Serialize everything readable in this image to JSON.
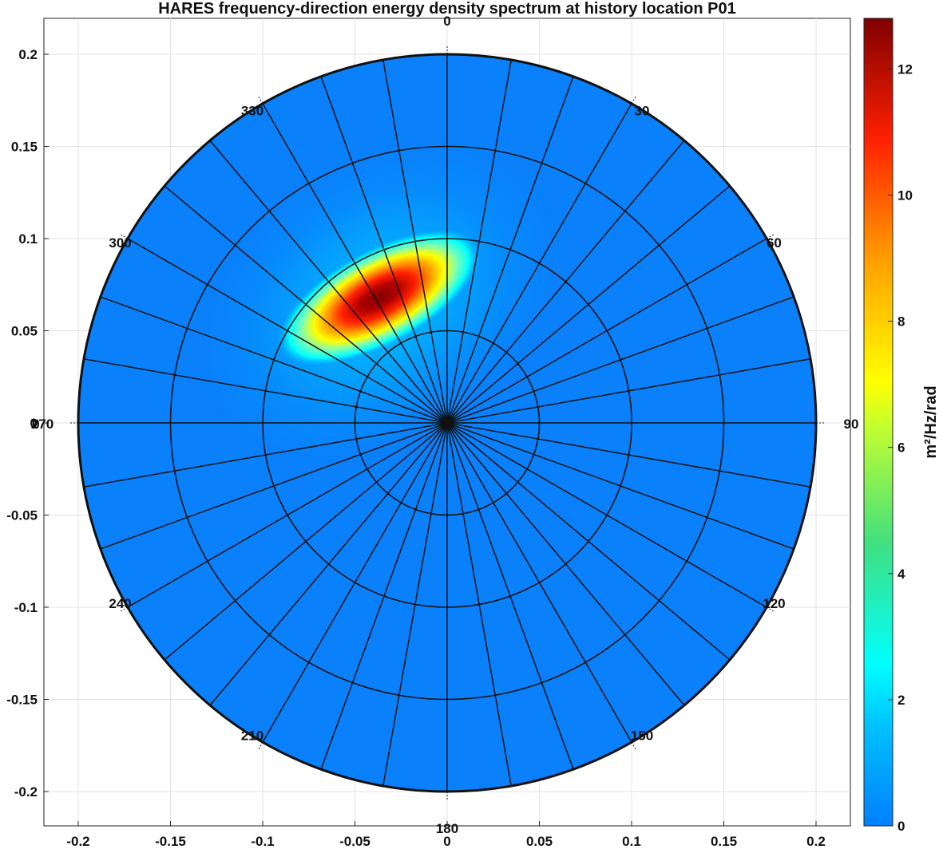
{
  "chart_data": {
    "type": "heatmap",
    "subtype": "polar-contour",
    "title": "HARES frequency-direction energy density spectrum at history location P01",
    "x_ticks": [
      "-0.2",
      "-0.15",
      "-0.1",
      "-0.05",
      "0",
      "0.05",
      "0.1",
      "0.15",
      "0.2"
    ],
    "y_ticks": [
      "0.2",
      "0.15",
      "0.1",
      "0.05",
      "0",
      "-0.05",
      "-0.1",
      "-0.15",
      "-0.2"
    ],
    "xlim": [
      -0.22,
      0.22
    ],
    "ylim": [
      -0.22,
      0.22
    ],
    "grid": true,
    "polar": {
      "r_max": 0.2,
      "rings": [
        0.05,
        0.1,
        0.15,
        0.2
      ],
      "spoke_step_deg": 10,
      "direction_convention": "clockwise from north",
      "direction_labels": [
        {
          "angle": 0,
          "text": "0"
        },
        {
          "angle": 30,
          "text": "30"
        },
        {
          "angle": 60,
          "text": "60"
        },
        {
          "angle": 90,
          "text": "90"
        },
        {
          "angle": 120,
          "text": "120"
        },
        {
          "angle": 150,
          "text": "150"
        },
        {
          "angle": 180,
          "text": "180"
        },
        {
          "angle": 210,
          "text": "210"
        },
        {
          "angle": 240,
          "text": "240"
        },
        {
          "angle": 270,
          "text": "270"
        },
        {
          "angle": 300,
          "text": "300"
        },
        {
          "angle": 330,
          "text": "330"
        }
      ],
      "extra_label_at_270": "0"
    },
    "spectrum_peak": {
      "x": -0.037,
      "y": 0.068,
      "value": 12.8
    },
    "background_value": 0.35,
    "colorbar": {
      "label": "m²/Hz/rad",
      "min": 0,
      "max": 12.8,
      "ticks": [
        "0",
        "2",
        "4",
        "6",
        "8",
        "10",
        "12"
      ],
      "colormap": "jet",
      "levels": 50
    }
  }
}
